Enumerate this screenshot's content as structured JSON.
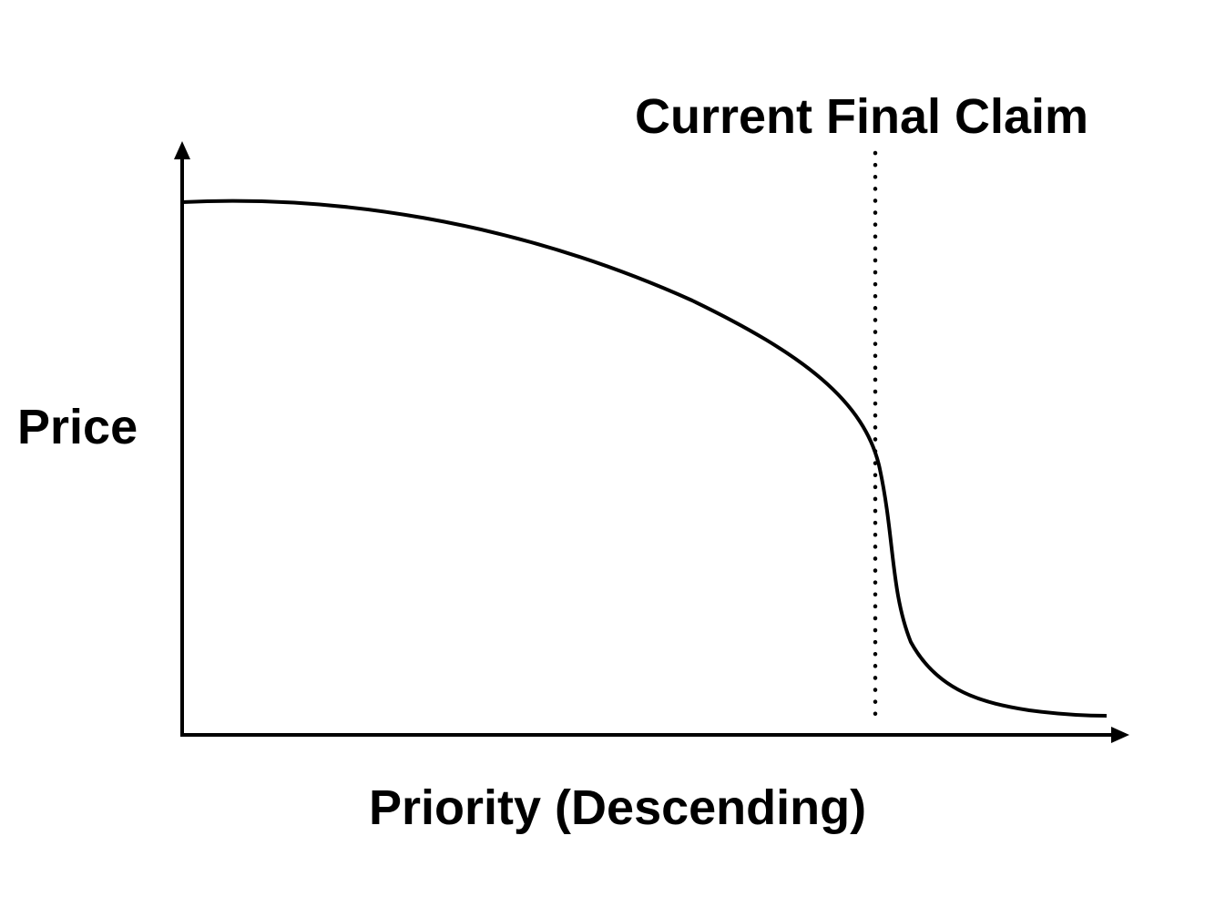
{
  "diagram": {
    "annotation": "Current Final Claim",
    "y_axis_label": "Price",
    "x_axis_label": "Priority (Descending)",
    "line_color": "#000000",
    "background_color": "#ffffff"
  }
}
